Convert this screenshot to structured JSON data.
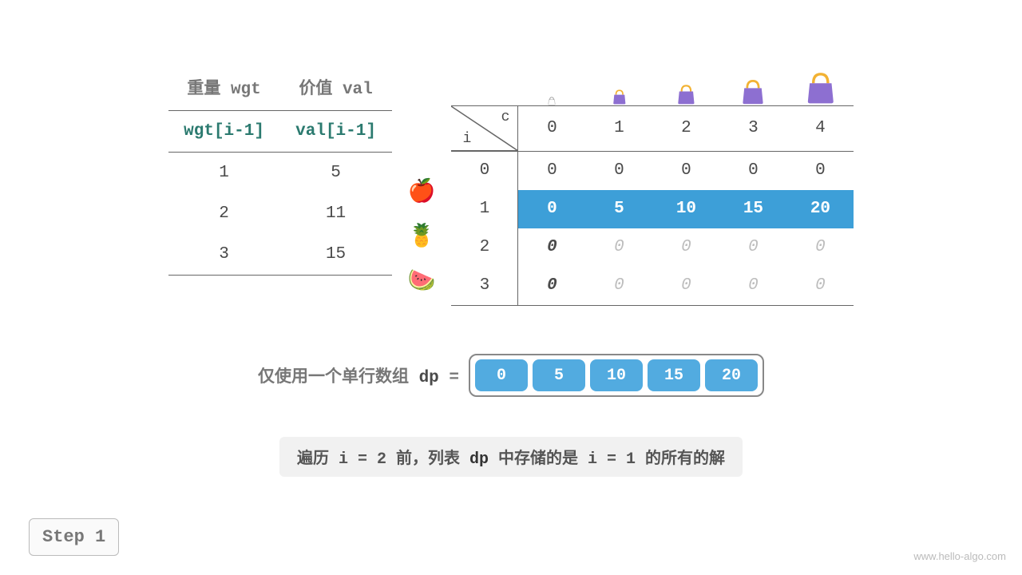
{
  "left_table": {
    "h1a": "重量 wgt",
    "h1b": "价值 val",
    "h2a": "wgt[i-1]",
    "h2b": "val[i-1]",
    "rows": [
      {
        "w": "1",
        "v": "5",
        "fruit": "🍎"
      },
      {
        "w": "2",
        "v": "11",
        "fruit": "🍍"
      },
      {
        "w": "3",
        "v": "15",
        "fruit": "🍉"
      }
    ]
  },
  "dp": {
    "corner_top": "c",
    "corner_bot": "i",
    "cols": [
      "0",
      "1",
      "2",
      "3",
      "4"
    ],
    "bag_sizes": [
      10,
      18,
      24,
      30,
      38
    ],
    "bag_color": "#8d6fd1",
    "bag_handle": "#f2b233",
    "rows": [
      {
        "i": "0",
        "cells": [
          "0",
          "0",
          "0",
          "0",
          "0"
        ],
        "style": "plain"
      },
      {
        "i": "1",
        "cells": [
          "0",
          "5",
          "10",
          "15",
          "20"
        ],
        "style": "hl"
      },
      {
        "i": "2",
        "cells": [
          "0",
          "0",
          "0",
          "0",
          "0"
        ],
        "style": "dim",
        "first_bold": true
      },
      {
        "i": "3",
        "cells": [
          "0",
          "0",
          "0",
          "0",
          "0"
        ],
        "style": "dim",
        "first_bold": true
      }
    ]
  },
  "dp_array": {
    "label_pre": "仅使用一个单行数组 ",
    "label_key": "dp",
    "label_post": " = ",
    "values": [
      "0",
      "5",
      "10",
      "15",
      "20"
    ]
  },
  "caption": {
    "t1": "遍历 i = 2 前，列表 ",
    "k": "dp",
    "t2": " 中存储的是 i = 1 的所有的解"
  },
  "step": "Step 1",
  "site": "www.hello-algo.com",
  "colors": {
    "hl_bg": "#3d9fd8",
    "teal": "#2b7a6f"
  }
}
